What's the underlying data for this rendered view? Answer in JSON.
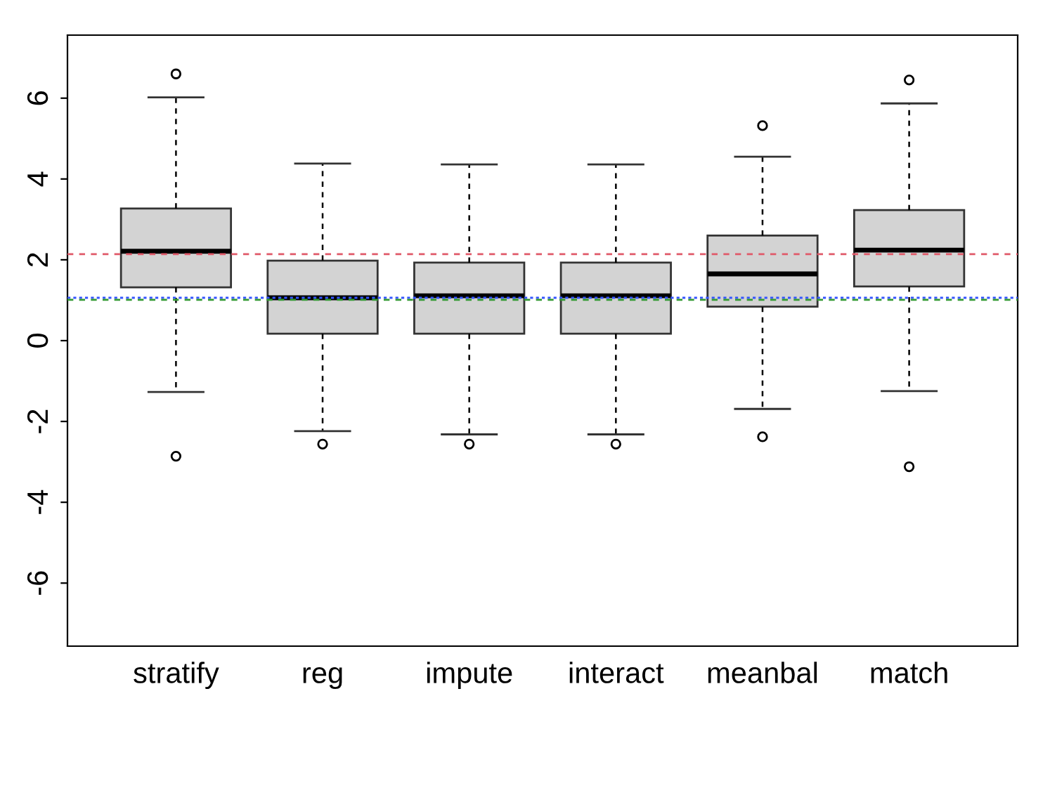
{
  "chart_data": {
    "type": "box",
    "categories": [
      "stratify",
      "reg",
      "impute",
      "interact",
      "meanbal",
      "match"
    ],
    "boxes": [
      {
        "low": -1.27,
        "q1": 1.32,
        "median": 2.21,
        "q3": 3.27,
        "high": 6.02,
        "outliers": [
          6.6,
          -2.86
        ]
      },
      {
        "low": -2.24,
        "q1": 0.17,
        "median": 1.06,
        "q3": 1.98,
        "high": 4.38,
        "outliers": [
          -2.56
        ]
      },
      {
        "low": -2.32,
        "q1": 0.17,
        "median": 1.11,
        "q3": 1.93,
        "high": 4.36,
        "outliers": [
          -2.56
        ]
      },
      {
        "low": -2.32,
        "q1": 0.17,
        "median": 1.11,
        "q3": 1.93,
        "high": 4.36,
        "outliers": [
          -2.56
        ]
      },
      {
        "low": -1.69,
        "q1": 0.84,
        "median": 1.65,
        "q3": 2.6,
        "high": 4.55,
        "outliers": [
          5.32,
          -2.38
        ]
      },
      {
        "low": -1.25,
        "q1": 1.34,
        "median": 2.24,
        "q3": 3.23,
        "high": 5.87,
        "outliers": [
          6.45,
          -3.12
        ]
      }
    ],
    "color": "#d3d3d3",
    "ylim": [
      -7.56,
      7.56
    ],
    "yticks": [
      -6,
      -4,
      -2,
      0,
      2,
      4,
      6
    ],
    "ref_lines": [
      {
        "axis": "y",
        "value": 2.14,
        "color": "#e05a6a",
        "line_style": "dashed"
      },
      {
        "axis": "y",
        "value": 1.06,
        "color": "#3355ff",
        "line_style": "dotted"
      },
      {
        "axis": "y",
        "value": 1.01,
        "color": "#339933",
        "line_style": "dashed"
      }
    ],
    "grid": false
  }
}
